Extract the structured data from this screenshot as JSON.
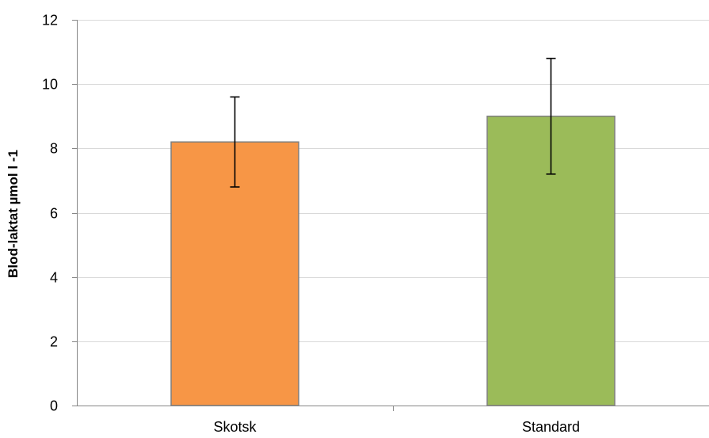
{
  "chart_data": {
    "type": "bar",
    "title": "",
    "xlabel": "",
    "ylabel": "Blod-laktat µmol l -1",
    "categories": [
      "Skotsk",
      "Standard"
    ],
    "values": [
      8.2,
      9.0
    ],
    "error_upper": [
      9.6,
      10.8
    ],
    "error_lower": [
      6.8,
      7.2
    ],
    "colors": [
      "#F79646",
      "#9BBB59"
    ],
    "ylim": [
      0,
      12
    ],
    "yticks": [
      "0",
      "2",
      "4",
      "6",
      "8",
      "10",
      "12"
    ],
    "grid": true,
    "legend": "none"
  }
}
